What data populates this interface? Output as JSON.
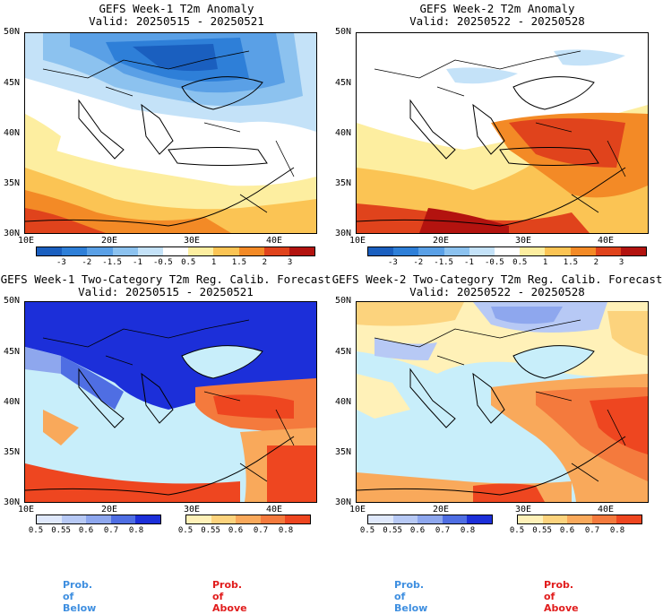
{
  "panels": [
    {
      "title_line1": "GEFS Week-1 T2m Anomaly",
      "title_line2": "Valid: 20250515 - 20250521"
    },
    {
      "title_line1": "GEFS Week-2 T2m Anomaly",
      "title_line2": "Valid: 20250522 - 20250528"
    },
    {
      "title_line1": "GEFS Week-1 Two-Category T2m Reg. Calib. Forecast",
      "title_line2": "Valid: 20250515 - 20250521"
    },
    {
      "title_line1": "GEFS Week-2 Two-Category T2m Reg. Calib. Forecast",
      "title_line2": "Valid: 20250522 - 20250528"
    }
  ],
  "lat_labels": [
    "50N",
    "45N",
    "40N",
    "35N",
    "30N"
  ],
  "lon_labels": [
    "10E",
    "20E",
    "30E",
    "40E"
  ],
  "anomaly_colorbar": {
    "labels": [
      "-3",
      "-2",
      "-1.5",
      "-1",
      "-0.5",
      "0.5",
      "1",
      "1.5",
      "2",
      "3"
    ],
    "colors": [
      "#1a5fbf",
      "#2e7fd8",
      "#5aa0e6",
      "#8cc2ef",
      "#c4e2f8",
      "#ffffff",
      "#fdeea0",
      "#fbc454",
      "#f38a26",
      "#e0431c",
      "#b3130f"
    ]
  },
  "below_colorbar": {
    "labels": [
      "0.5",
      "0.55",
      "0.6",
      "0.7",
      "0.8"
    ],
    "colors": [
      "#dfe8fb",
      "#b7c9f5",
      "#8ea7ee",
      "#4f6ee3",
      "#1c2fd9"
    ]
  },
  "above_colorbar": {
    "labels": [
      "0.5",
      "0.55",
      "0.6",
      "0.7",
      "0.8"
    ],
    "colors": [
      "#fff1b8",
      "#fcd37d",
      "#f9a95b",
      "#f47a3d",
      "#ee4620"
    ]
  },
  "legend": {
    "below": "Prob. of Below",
    "above": "Prob. of Above"
  }
}
